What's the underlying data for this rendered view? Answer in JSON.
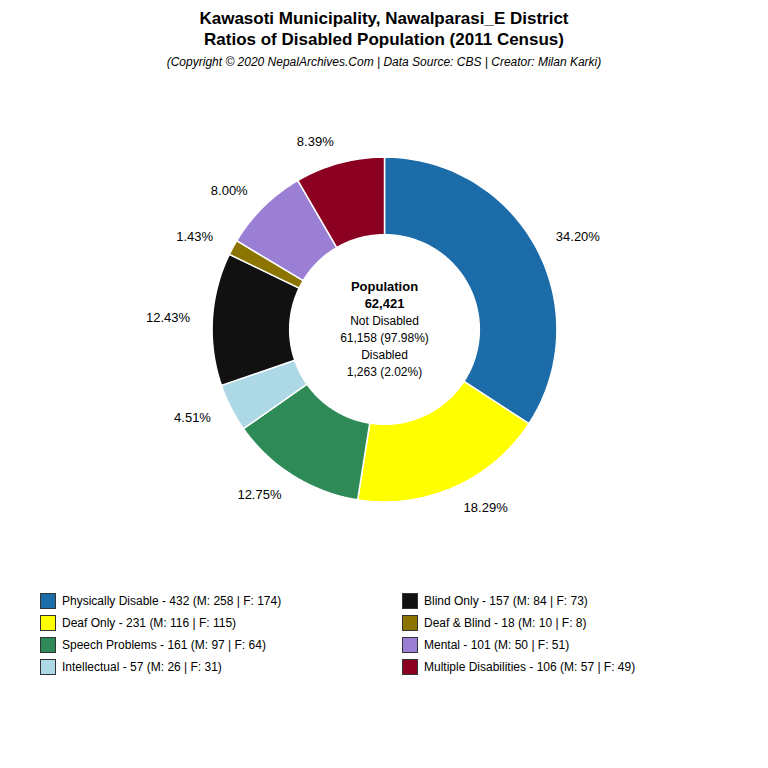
{
  "chart_data": {
    "type": "donut",
    "title": "Kawasoti Municipality, Nawalparasi_E District\nRatios of Disabled Population (2011 Census)",
    "subtitle": "(Copyright © 2020 NepalArchives.Com | Data Source: CBS | Creator: Milan Karki)",
    "categories": [
      "Physically Disable - 432 (M: 258 | F: 174)",
      "Deaf Only - 231 (M: 116 | F: 115)",
      "Speech Problems - 161 (M: 97 | F: 64)",
      "Intellectual - 57 (M: 26 | F: 31)",
      "Blind Only - 157 (M: 84 | F: 73)",
      "Deaf & Blind - 18 (M: 10 | F: 8)",
      "Mental - 101 (M: 50 | F: 51)",
      "Multiple Disabilities - 106 (M: 57 | F: 49)"
    ],
    "values": [
      34.2,
      18.29,
      12.75,
      4.51,
      12.43,
      1.43,
      8.0,
      8.39
    ],
    "value_labels": [
      "34.20%",
      "18.29%",
      "12.75%",
      "4.51%",
      "12.43%",
      "1.43%",
      "8.00%",
      "8.39%"
    ],
    "colors": [
      "#1B6CA8",
      "#FFFF00",
      "#2E8B57",
      "#ADD8E6",
      "#111111",
      "#8B7500",
      "#9B7FD4",
      "#8B0020"
    ],
    "annotations": [
      "Population",
      "62,421",
      "Not Disabled",
      "61,158 (97.98%)",
      "Disabled",
      "1,263 (2.02%)"
    ],
    "data_labels": true,
    "legend": "bottom"
  }
}
